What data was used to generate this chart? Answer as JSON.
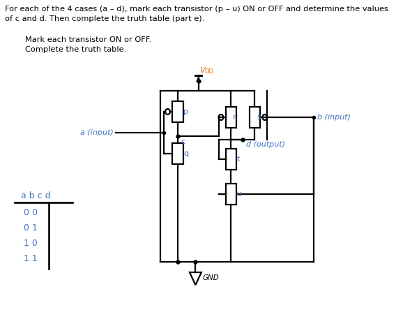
{
  "title_line1": "For each of the 4 cases (a – d), mark each transistor (p – u) ON or OFF and determine the values",
  "title_line2": "of c and d. Then complete the truth table (part e).",
  "subtitle_line1": "Mark each transistor ON or OFF.",
  "subtitle_line2": "Complete the truth table.",
  "text_color": "#000000",
  "blue_color": "#4472C4",
  "orange_color": "#E36C09",
  "label_a": "a (input)",
  "label_b": "b (input)",
  "label_c": "c",
  "label_d": "d (output)",
  "label_p": "p",
  "label_q": "q",
  "label_r": "r",
  "label_s": "s",
  "label_t": "t",
  "label_u": "u",
  "label_vdd": "V",
  "label_vdd_sub": "DD",
  "label_gnd": "GND",
  "table_header": "a b c d",
  "table_rows": [
    "0 0",
    "0 1",
    "1 0",
    "1 1"
  ]
}
